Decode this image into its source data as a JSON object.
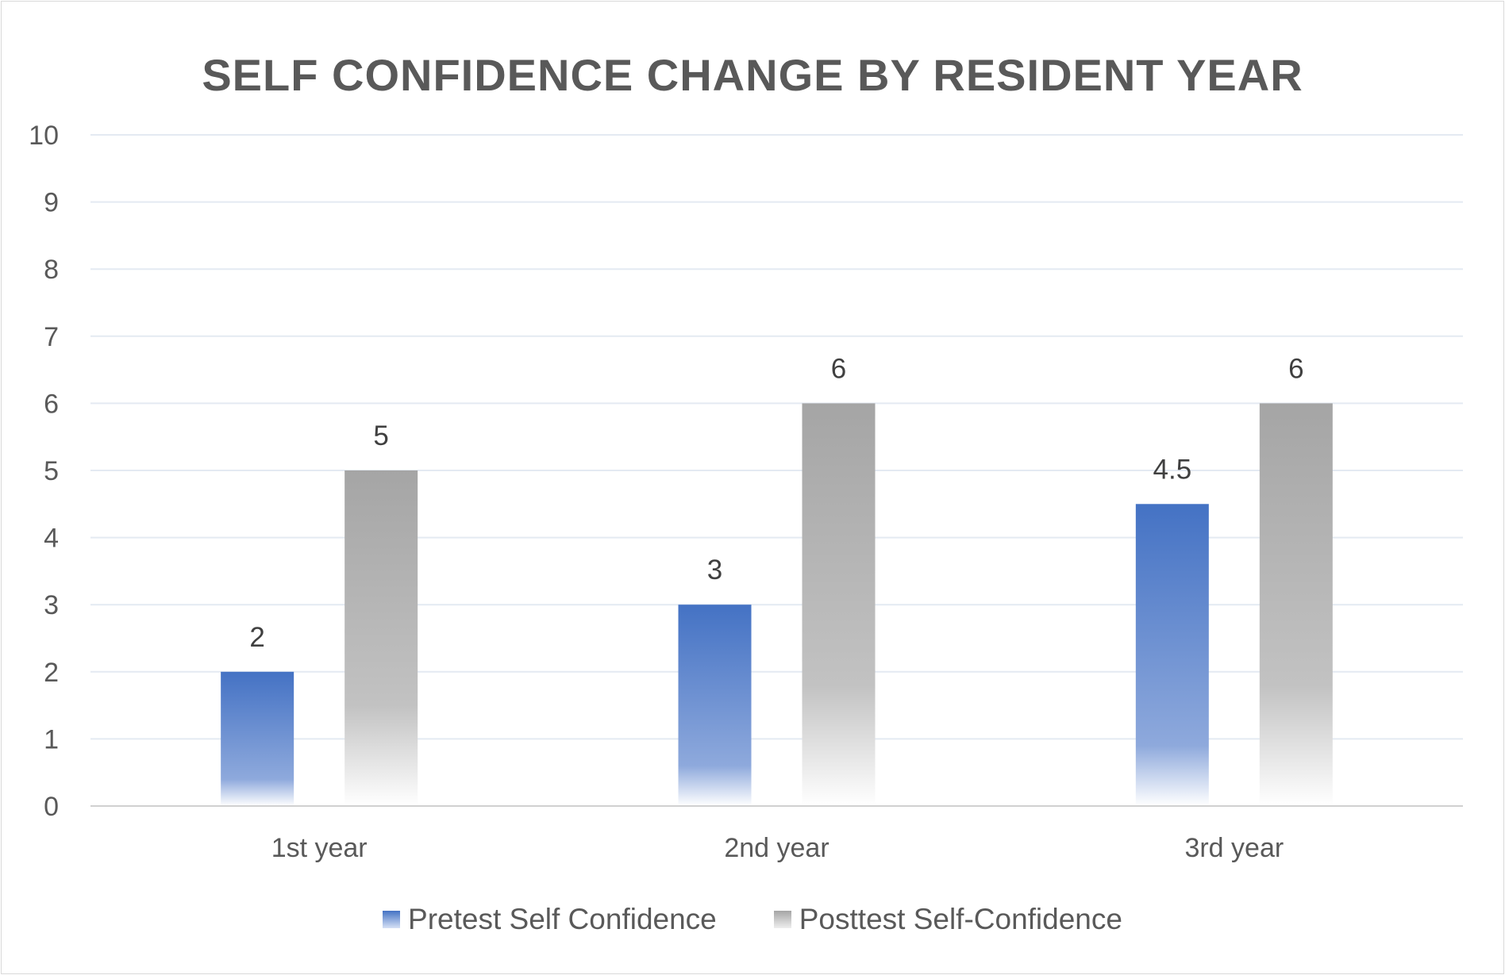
{
  "chart_data": {
    "type": "bar",
    "title": "SELF CONFIDENCE CHANGE BY RESIDENT YEAR",
    "categories": [
      "1st year",
      "2nd year",
      "3rd year"
    ],
    "series": [
      {
        "name": "Pretest Self Confidence",
        "values": [
          2,
          3,
          4.5
        ],
        "color": "#4472c4"
      },
      {
        "name": "Posttest Self-Confidence",
        "values": [
          5,
          6,
          6
        ],
        "color": "#a5a5a5"
      }
    ],
    "data_labels": [
      [
        "2",
        "3",
        "4.5"
      ],
      [
        "5",
        "6",
        "6"
      ]
    ],
    "ylim": [
      0,
      10
    ],
    "yticks": [
      "0",
      "1",
      "2",
      "3",
      "4",
      "5",
      "6",
      "7",
      "8",
      "9",
      "10"
    ],
    "grid": true,
    "legend": "bottom"
  }
}
